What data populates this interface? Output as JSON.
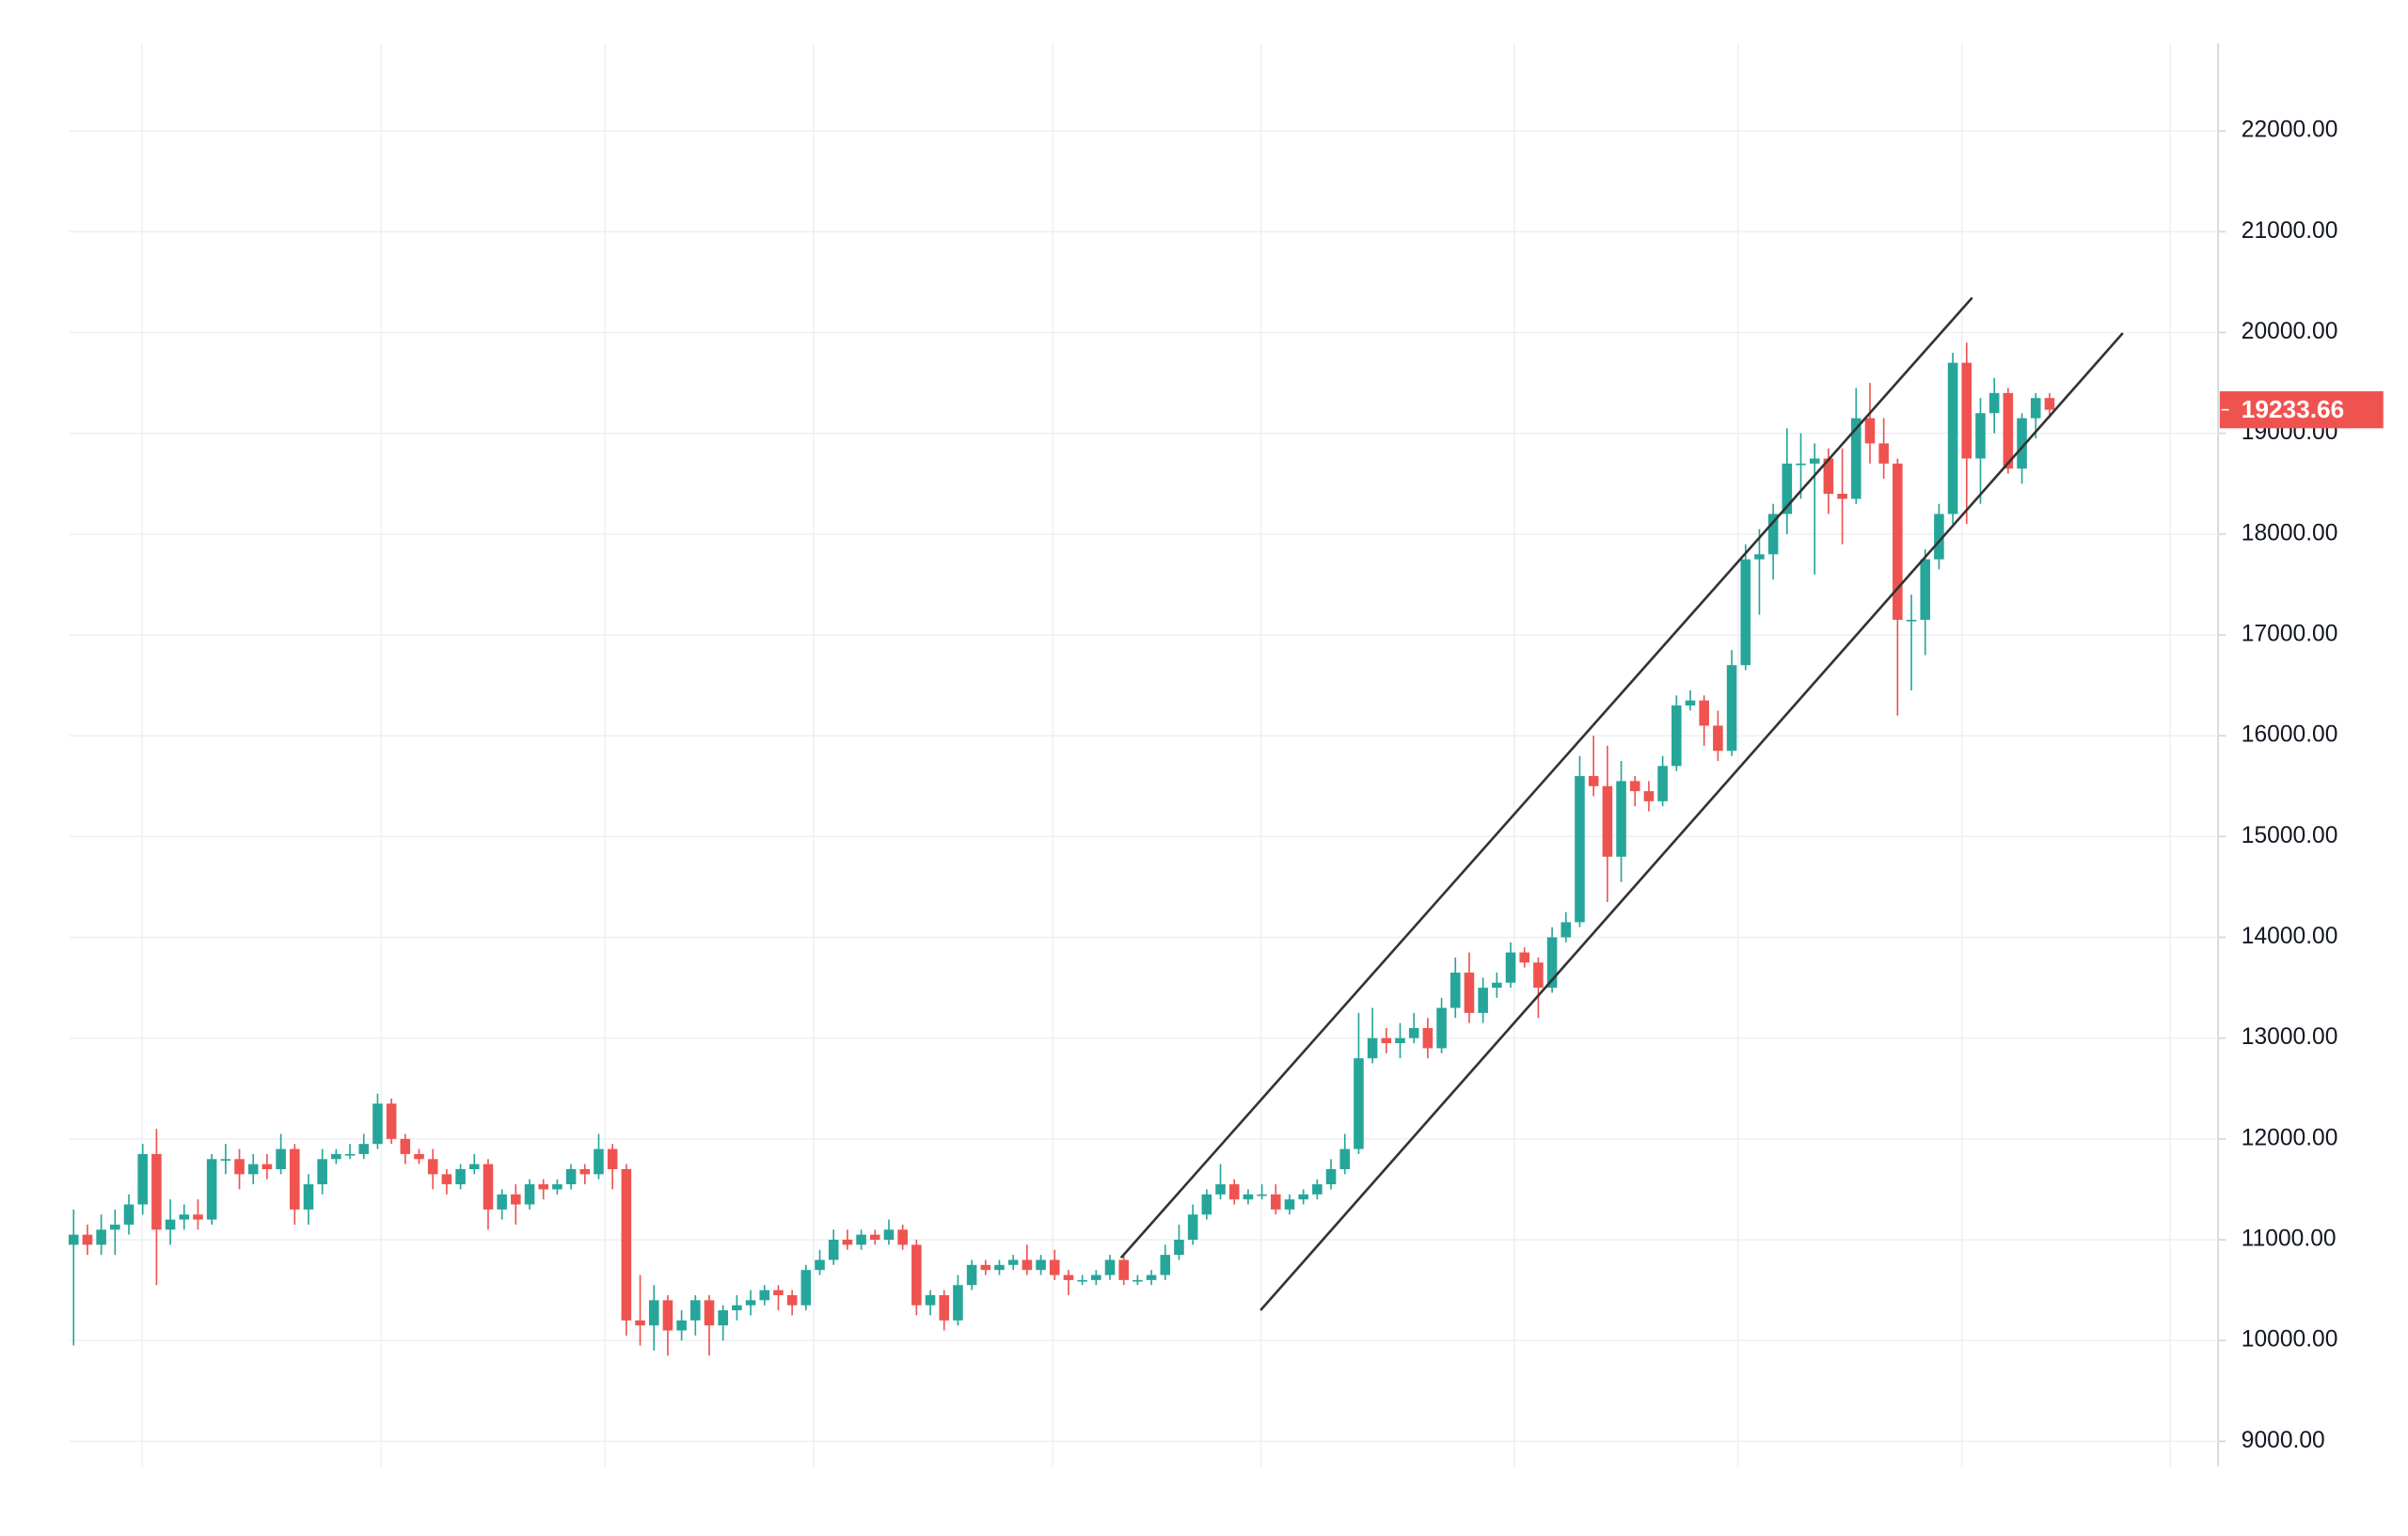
{
  "chart_data": {
    "type": "candlestick",
    "up_color": "#26a69a",
    "down_color": "#ef5350",
    "ylim": [
      8750,
      22870
    ],
    "xlim": [
      -0.3,
      155.2
    ],
    "yticks": [
      {
        "value": 9000,
        "label": "9000.00"
      },
      {
        "value": 10000,
        "label": "10000.00"
      },
      {
        "value": 11000,
        "label": "11000.00"
      },
      {
        "value": 12000,
        "label": "12000.00"
      },
      {
        "value": 13000,
        "label": "13000.00"
      },
      {
        "value": 14000,
        "label": "14000.00"
      },
      {
        "value": 15000,
        "label": "15000.00"
      },
      {
        "value": 16000,
        "label": "16000.00"
      },
      {
        "value": 17000,
        "label": "17000.00"
      },
      {
        "value": 18000,
        "label": "18000.00"
      },
      {
        "value": 19000,
        "label": "19000.00"
      },
      {
        "value": 20000,
        "label": "20000.00"
      },
      {
        "value": 21000,
        "label": "21000.00"
      },
      {
        "value": 22000,
        "label": "22000.00"
      }
    ],
    "grid": true,
    "last_price": 19233.66,
    "trendlines": [
      {
        "x": [
          75.8,
          137.4
        ],
        "y": [
          10821,
          20346
        ],
        "color": "#333333"
      },
      {
        "x": [
          85.9,
          148.3
        ],
        "y": [
          10300,
          19994
        ],
        "color": "#333333"
      }
    ],
    "ohlc": [
      [
        10950,
        11300,
        9950,
        11050
      ],
      [
        11050,
        11150,
        10850,
        10950
      ],
      [
        10950,
        11250,
        10850,
        11100
      ],
      [
        11100,
        11300,
        10850,
        11150
      ],
      [
        11150,
        11450,
        11050,
        11350
      ],
      [
        11350,
        11950,
        11250,
        11850
      ],
      [
        11850,
        12100,
        10550,
        11100
      ],
      [
        11100,
        11400,
        10950,
        11200
      ],
      [
        11200,
        11350,
        11100,
        11250
      ],
      [
        11250,
        11400,
        11100,
        11200
      ],
      [
        11200,
        11850,
        11150,
        11800
      ],
      [
        11800,
        11950,
        11650,
        11800
      ],
      [
        11800,
        11900,
        11500,
        11650
      ],
      [
        11650,
        11850,
        11550,
        11750
      ],
      [
        11750,
        11850,
        11600,
        11700
      ],
      [
        11700,
        12050,
        11650,
        11900
      ],
      [
        11900,
        11950,
        11150,
        11300
      ],
      [
        11300,
        11650,
        11150,
        11550
      ],
      [
        11550,
        11900,
        11450,
        11800
      ],
      [
        11800,
        11900,
        11750,
        11850
      ],
      [
        11850,
        11950,
        11800,
        11850
      ],
      [
        11850,
        12050,
        11800,
        11950
      ],
      [
        11950,
        12450,
        11900,
        12350
      ],
      [
        12350,
        12400,
        11950,
        12000
      ],
      [
        12000,
        12050,
        11750,
        11850
      ],
      [
        11850,
        11900,
        11750,
        11800
      ],
      [
        11800,
        11900,
        11500,
        11650
      ],
      [
        11650,
        11700,
        11450,
        11550
      ],
      [
        11550,
        11750,
        11500,
        11700
      ],
      [
        11700,
        11850,
        11650,
        11750
      ],
      [
        11750,
        11800,
        11100,
        11300
      ],
      [
        11300,
        11500,
        11200,
        11450
      ],
      [
        11450,
        11550,
        11150,
        11350
      ],
      [
        11350,
        11600,
        11300,
        11550
      ],
      [
        11550,
        11600,
        11400,
        11500
      ],
      [
        11500,
        11600,
        11450,
        11550
      ],
      [
        11550,
        11750,
        11500,
        11700
      ],
      [
        11700,
        11750,
        11550,
        11650
      ],
      [
        11650,
        12050,
        11600,
        11900
      ],
      [
        11900,
        11950,
        11500,
        11700
      ],
      [
        11700,
        11750,
        10050,
        10200
      ],
      [
        10200,
        10650,
        9950,
        10150
      ],
      [
        10150,
        10550,
        9900,
        10400
      ],
      [
        10400,
        10450,
        9850,
        10100
      ],
      [
        10100,
        10300,
        10000,
        10200
      ],
      [
        10200,
        10450,
        10050,
        10400
      ],
      [
        10400,
        10450,
        9850,
        10150
      ],
      [
        10150,
        10350,
        10000,
        10300
      ],
      [
        10300,
        10450,
        10200,
        10350
      ],
      [
        10350,
        10500,
        10250,
        10400
      ],
      [
        10400,
        10550,
        10350,
        10500
      ],
      [
        10500,
        10550,
        10300,
        10450
      ],
      [
        10450,
        10500,
        10250,
        10350
      ],
      [
        10350,
        10750,
        10300,
        10700
      ],
      [
        10700,
        10900,
        10650,
        10800
      ],
      [
        10800,
        11100,
        10750,
        11000
      ],
      [
        11000,
        11100,
        10900,
        10950
      ],
      [
        10950,
        11100,
        10900,
        11050
      ],
      [
        11050,
        11100,
        10950,
        11000
      ],
      [
        11000,
        11200,
        10950,
        11100
      ],
      [
        11100,
        11150,
        10900,
        10950
      ],
      [
        10950,
        11000,
        10250,
        10350
      ],
      [
        10350,
        10500,
        10250,
        10450
      ],
      [
        10450,
        10500,
        10100,
        10200
      ],
      [
        10200,
        10650,
        10150,
        10550
      ],
      [
        10550,
        10800,
        10500,
        10750
      ],
      [
        10750,
        10800,
        10650,
        10700
      ],
      [
        10700,
        10800,
        10650,
        10750
      ],
      [
        10750,
        10850,
        10700,
        10800
      ],
      [
        10800,
        10950,
        10650,
        10700
      ],
      [
        10700,
        10850,
        10650,
        10800
      ],
      [
        10800,
        10900,
        10600,
        10650
      ],
      [
        10650,
        10700,
        10450,
        10600
      ],
      [
        10600,
        10650,
        10550,
        10600
      ],
      [
        10600,
        10700,
        10550,
        10650
      ],
      [
        10650,
        10850,
        10600,
        10800
      ],
      [
        10800,
        10850,
        10550,
        10600
      ],
      [
        10600,
        10650,
        10550,
        10600
      ],
      [
        10600,
        10700,
        10550,
        10650
      ],
      [
        10650,
        10950,
        10600,
        10850
      ],
      [
        10850,
        11150,
        10800,
        11000
      ],
      [
        11000,
        11350,
        10950,
        11250
      ],
      [
        11250,
        11500,
        11200,
        11450
      ],
      [
        11450,
        11750,
        11400,
        11550
      ],
      [
        11550,
        11600,
        11350,
        11400
      ],
      [
        11400,
        11500,
        11350,
        11450
      ],
      [
        11450,
        11550,
        11400,
        11450
      ],
      [
        11450,
        11550,
        11250,
        11300
      ],
      [
        11300,
        11450,
        11250,
        11400
      ],
      [
        11400,
        11500,
        11350,
        11450
      ],
      [
        11450,
        11600,
        11400,
        11550
      ],
      [
        11550,
        11800,
        11500,
        11700
      ],
      [
        11700,
        12050,
        11650,
        11900
      ],
      [
        11900,
        13250,
        11850,
        12800
      ],
      [
        12800,
        13300,
        12750,
        13000
      ],
      [
        13000,
        13100,
        12850,
        12950
      ],
      [
        12950,
        13150,
        12800,
        13000
      ],
      [
        13000,
        13250,
        12950,
        13100
      ],
      [
        13100,
        13200,
        12800,
        12900
      ],
      [
        12900,
        13400,
        12850,
        13300
      ],
      [
        13300,
        13800,
        13200,
        13650
      ],
      [
        13650,
        13850,
        13150,
        13250
      ],
      [
        13250,
        13600,
        13150,
        13500
      ],
      [
        13500,
        13650,
        13400,
        13550
      ],
      [
        13550,
        13950,
        13500,
        13850
      ],
      [
        13850,
        13900,
        13700,
        13750
      ],
      [
        13750,
        13800,
        13200,
        13500
      ],
      [
        13500,
        14100,
        13450,
        14000
      ],
      [
        14000,
        14250,
        13950,
        14150
      ],
      [
        14150,
        15800,
        14100,
        15600
      ],
      [
        15600,
        16000,
        15400,
        15500
      ],
      [
        15500,
        15900,
        14350,
        14800
      ],
      [
        14800,
        15750,
        14550,
        15550
      ],
      [
        15550,
        15600,
        15300,
        15450
      ],
      [
        15450,
        15550,
        15250,
        15350
      ],
      [
        15350,
        15800,
        15300,
        15700
      ],
      [
        15700,
        16400,
        15650,
        16300
      ],
      [
        16300,
        16450,
        16250,
        16350
      ],
      [
        16350,
        16400,
        15900,
        16100
      ],
      [
        16100,
        16250,
        15750,
        15850
      ],
      [
        15850,
        16850,
        15800,
        16700
      ],
      [
        16700,
        17900,
        16650,
        17750
      ],
      [
        17750,
        18050,
        17200,
        17800
      ],
      [
        17800,
        18300,
        17550,
        18200
      ],
      [
        18200,
        19050,
        18000,
        18700
      ],
      [
        18700,
        19000,
        18350,
        18700
      ],
      [
        18700,
        18900,
        17600,
        18750
      ],
      [
        18750,
        18850,
        18200,
        18400
      ],
      [
        18400,
        18850,
        17900,
        18350
      ],
      [
        18350,
        19450,
        18300,
        19150
      ],
      [
        19150,
        19500,
        18700,
        18900
      ],
      [
        18900,
        19150,
        18550,
        18700
      ],
      [
        18700,
        18750,
        16200,
        17150
      ],
      [
        17150,
        17400,
        16450,
        17150
      ],
      [
        17150,
        17850,
        16800,
        17750
      ],
      [
        17750,
        18300,
        17650,
        18200
      ],
      [
        18200,
        19800,
        18100,
        19700
      ],
      [
        19700,
        19900,
        18100,
        18750
      ],
      [
        18750,
        19350,
        18300,
        19200
      ],
      [
        19200,
        19550,
        19000,
        19400
      ],
      [
        19400,
        19450,
        18600,
        18650
      ],
      [
        18650,
        19200,
        18500,
        19150
      ],
      [
        19150,
        19400,
        18950,
        19350
      ],
      [
        19350,
        19400,
        19150,
        19233.66
      ]
    ]
  }
}
